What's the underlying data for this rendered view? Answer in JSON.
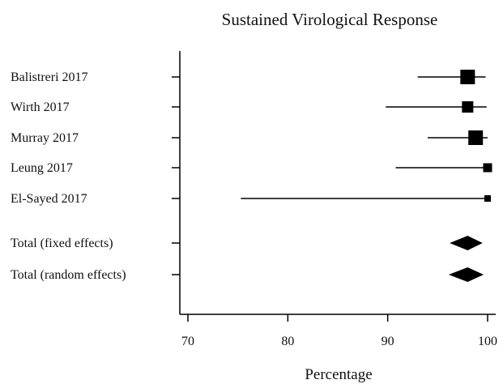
{
  "chart_data": {
    "type": "forest",
    "title": "Sustained Virological Response",
    "xlabel": "Percentage",
    "ylabel": "",
    "xlim": [
      69,
      101
    ],
    "xticks": [
      70,
      80,
      90,
      100
    ],
    "grid": false,
    "studies": [
      {
        "label": "Balistreri 2017",
        "estimate": 98.0,
        "ci": [
          93.0,
          99.8
        ],
        "weight": "large"
      },
      {
        "label": "Wirth 2017",
        "estimate": 98.0,
        "ci": [
          89.8,
          99.9
        ],
        "weight": "medium"
      },
      {
        "label": "Murray 2017",
        "estimate": 98.8,
        "ci": [
          94.0,
          100.0
        ],
        "weight": "large"
      },
      {
        "label": "Leung 2017",
        "estimate": 100.0,
        "ci": [
          90.8,
          100.0
        ],
        "weight": "small"
      },
      {
        "label": "El-Sayed 2017",
        "estimate": 100.0,
        "ci": [
          75.3,
          100.0
        ],
        "weight": "tiny"
      }
    ],
    "pooled": [
      {
        "label": "Total (fixed effects)",
        "estimate": 98.0,
        "ci": [
          96.2,
          99.5
        ]
      },
      {
        "label": "Total (random effects)",
        "estimate": 98.0,
        "ci": [
          96.1,
          99.6
        ]
      }
    ],
    "colors": {
      "marks": "#000000",
      "axis": "#000000"
    }
  }
}
